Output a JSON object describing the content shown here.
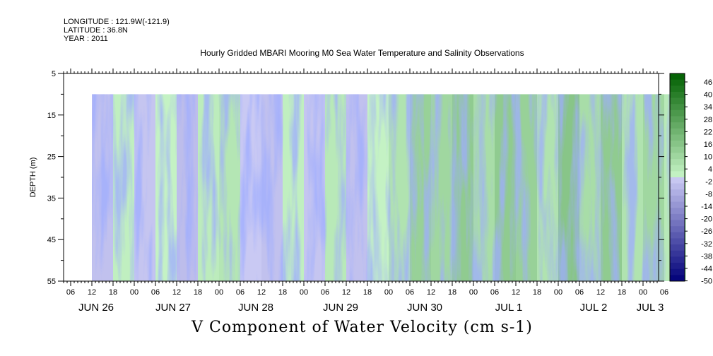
{
  "header": {
    "longitude": "LONGITUDE : 121.9W(-121.9)",
    "latitude": "LATITUDE : 36.8N",
    "year": "YEAR : 2011"
  },
  "chart_data": {
    "type": "heatmap",
    "title": "Hourly Gridded MBARI Mooring M0 Sea Water Temperature and Salinity Observations",
    "xlabel": "V Component of Water Velocity (cm s-1)",
    "ylabel": "DEPTH (m)",
    "ylim": [
      55,
      5
    ],
    "y_ticks": [
      5,
      15,
      25,
      35,
      45,
      55
    ],
    "x_hour_labels": [
      "06",
      "12",
      "18",
      "00",
      "06",
      "12",
      "18",
      "00",
      "06",
      "12",
      "18",
      "00",
      "06",
      "12",
      "18",
      "00",
      "06",
      "12",
      "18",
      "00",
      "06",
      "12",
      "18",
      "00",
      "06",
      "12",
      "18",
      "00",
      "06"
    ],
    "x_day_labels": [
      "JUN 26",
      "JUN 27",
      "JUN 28",
      "JUN 29",
      "JUN 30",
      "JUL  1",
      "JUL  2",
      "JUL  3"
    ],
    "data_depth_range": [
      10,
      55
    ],
    "data_time_range_hours": [
      12,
      180
    ],
    "colorbar": {
      "labels": [
        "46",
        "40",
        "34",
        "28",
        "22",
        "16",
        "10",
        "4",
        "-2",
        "-8",
        "-14",
        "-20",
        "-26",
        "-32",
        "-38",
        "-44",
        "-50"
      ],
      "range": [
        -50,
        50
      ]
    },
    "velocity_profile": [
      {
        "hour": 12,
        "v": -3
      },
      {
        "hour": 18,
        "v": 2
      },
      {
        "hour": 24,
        "v": -2
      },
      {
        "hour": 30,
        "v": 1
      },
      {
        "hour": 36,
        "v": -4
      },
      {
        "hour": 42,
        "v": 3
      },
      {
        "hour": 48,
        "v": 5
      },
      {
        "hour": 54,
        "v": -1
      },
      {
        "hour": 60,
        "v": -3
      },
      {
        "hour": 66,
        "v": 2
      },
      {
        "hour": 72,
        "v": -2
      },
      {
        "hour": 78,
        "v": 4
      },
      {
        "hour": 84,
        "v": -3
      },
      {
        "hour": 90,
        "v": 1
      },
      {
        "hour": 96,
        "v": 6
      },
      {
        "hour": 102,
        "v": 12
      },
      {
        "hour": 108,
        "v": 10
      },
      {
        "hour": 114,
        "v": 14
      },
      {
        "hour": 120,
        "v": 8
      },
      {
        "hour": 126,
        "v": 14
      },
      {
        "hour": 132,
        "v": 12
      },
      {
        "hour": 138,
        "v": 6
      },
      {
        "hour": 144,
        "v": 16
      },
      {
        "hour": 150,
        "v": 8
      },
      {
        "hour": 156,
        "v": 14
      },
      {
        "hour": 162,
        "v": 6
      },
      {
        "hour": 168,
        "v": 10
      },
      {
        "hour": 174,
        "v": 4
      },
      {
        "hour": 180,
        "v": 2
      }
    ]
  }
}
